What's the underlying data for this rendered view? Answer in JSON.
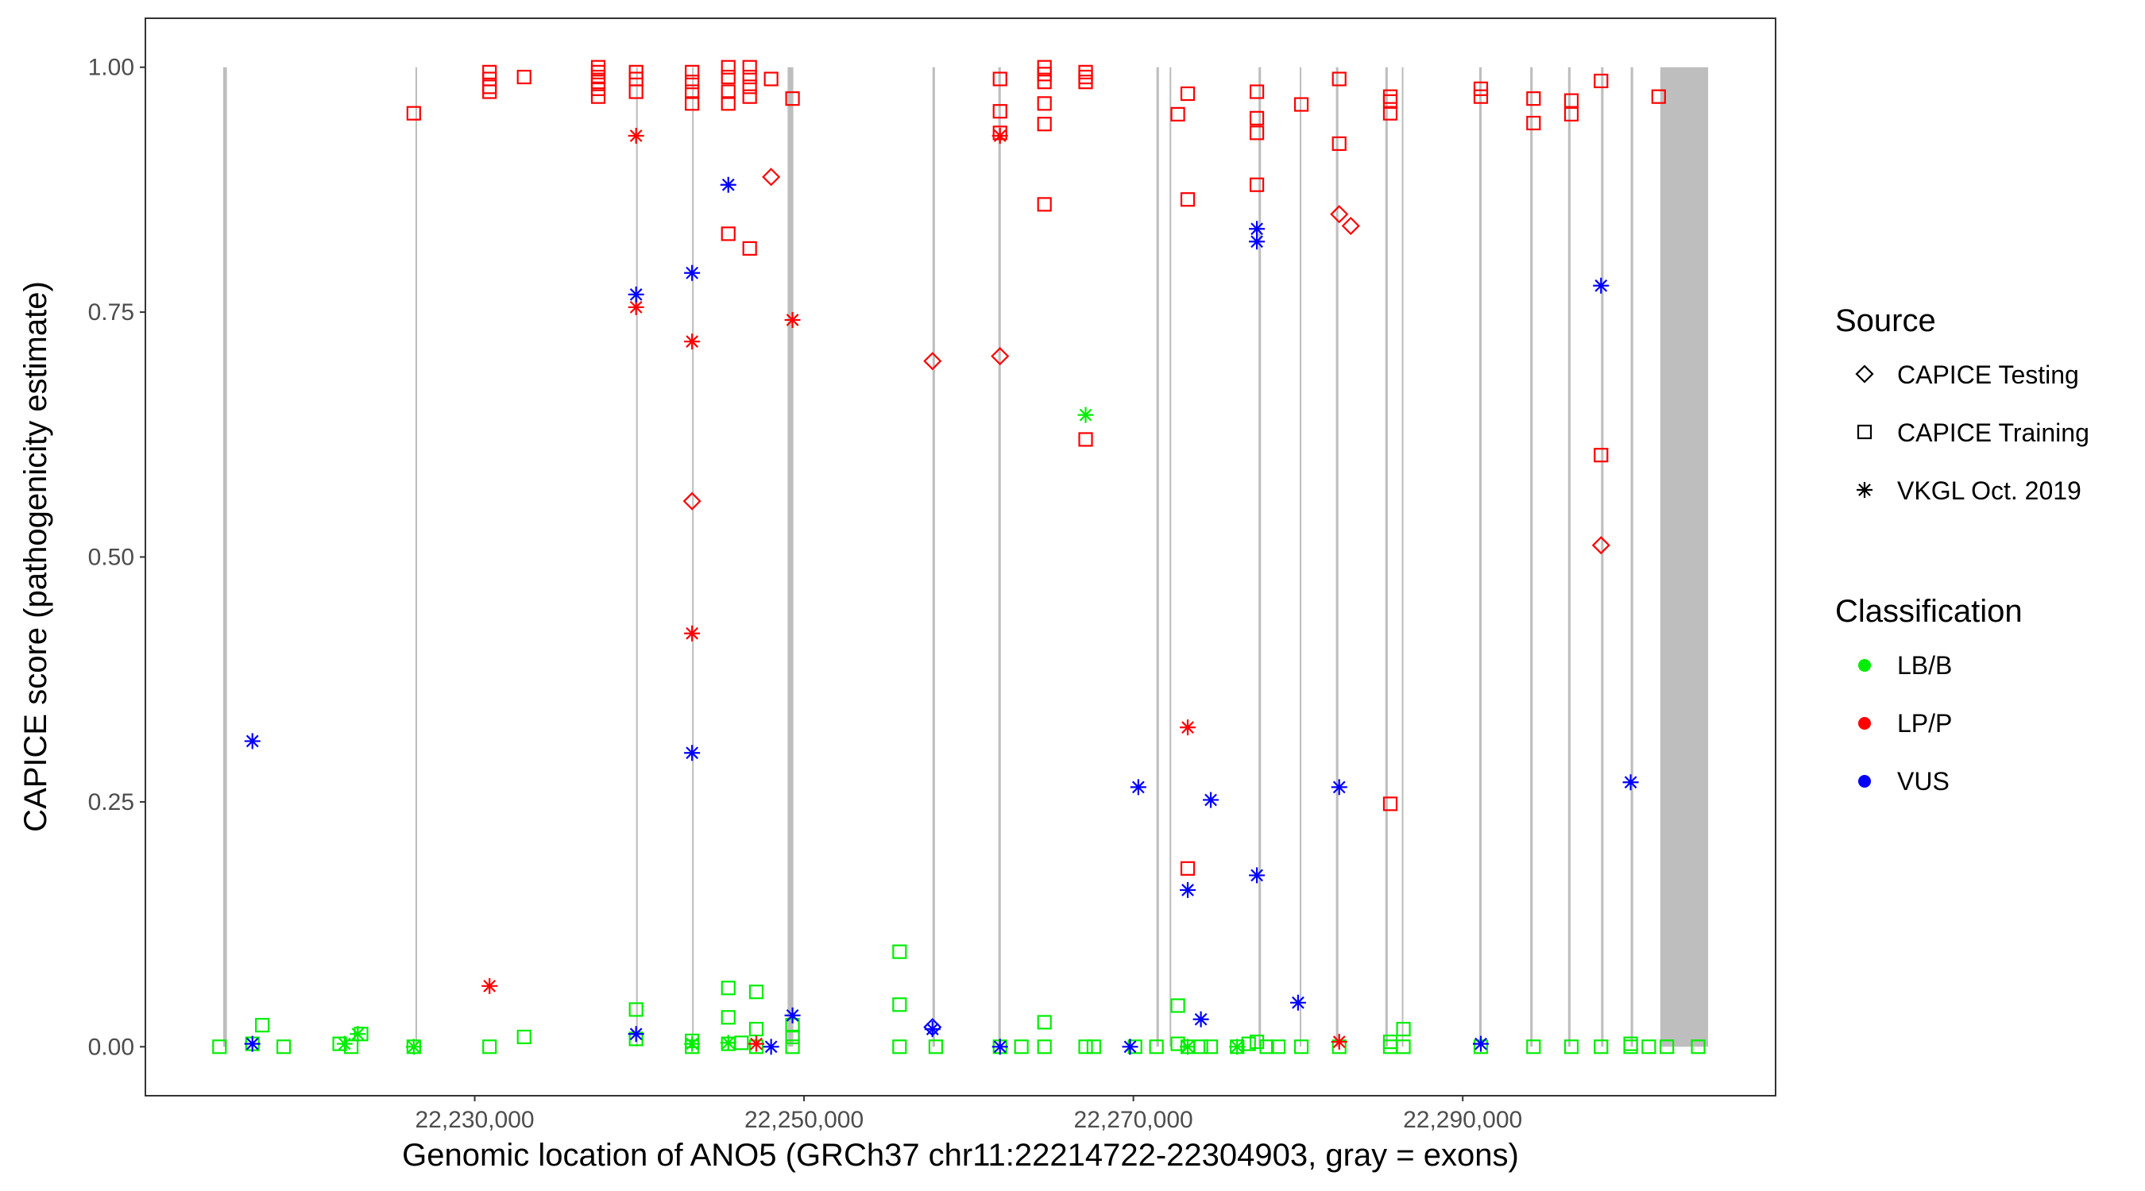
{
  "chart_data": {
    "type": "scatter",
    "xlabel": "Genomic location of ANO5 (GRCh37 chr11:22214722-22304903, gray = exons)",
    "ylabel": "CAPICE score (pathogenicity estimate)",
    "xlim": [
      22210000,
      22309000
    ],
    "ylim": [
      -0.05,
      1.05
    ],
    "x_ticks": [
      22230000,
      22250000,
      22270000,
      22290000
    ],
    "x_tick_labels": [
      "22,230,000",
      "22,250,000",
      "22,270,000",
      "22,290,000"
    ],
    "y_ticks": [
      0,
      0.25,
      0.5,
      0.75,
      1.0
    ],
    "y_tick_labels": [
      "0.00",
      "0.25",
      "0.50",
      "0.75",
      "1.00"
    ],
    "grid": false,
    "legend_position": "right",
    "exons": [
      {
        "start": 22214722,
        "end": 22214950
      },
      {
        "start": 22226400,
        "end": 22226500
      },
      {
        "start": 22239800,
        "end": 22239900
      },
      {
        "start": 22243200,
        "end": 22243300
      },
      {
        "start": 22249000,
        "end": 22249350
      },
      {
        "start": 22257800,
        "end": 22257950
      },
      {
        "start": 22261800,
        "end": 22261950
      },
      {
        "start": 22271400,
        "end": 22271550
      },
      {
        "start": 22272200,
        "end": 22272300
      },
      {
        "start": 22277600,
        "end": 22277750
      },
      {
        "start": 22280100,
        "end": 22280200
      },
      {
        "start": 22282300,
        "end": 22282450
      },
      {
        "start": 22285300,
        "end": 22285450
      },
      {
        "start": 22286300,
        "end": 22286400
      },
      {
        "start": 22291000,
        "end": 22291150
      },
      {
        "start": 22294100,
        "end": 22294250
      },
      {
        "start": 22296400,
        "end": 22296550
      },
      {
        "start": 22298400,
        "end": 22298550
      },
      {
        "start": 22300200,
        "end": 22300350
      },
      {
        "start": 22302000,
        "end": 22304903
      }
    ],
    "legend": {
      "source_title": "Source",
      "source_items": [
        {
          "label": "CAPICE Testing",
          "shape": "diamond"
        },
        {
          "label": "CAPICE Training",
          "shape": "square"
        },
        {
          "label": "VKGL Oct. 2019",
          "shape": "asterisk"
        }
      ],
      "class_title": "Classification",
      "class_items": [
        {
          "label": "LB/B",
          "color": "#00ee00"
        },
        {
          "label": "LP/P",
          "color": "#ff0000"
        },
        {
          "label": "VUS",
          "color": "#0000ff"
        }
      ]
    },
    "series": [
      {
        "source": "CAPICE Training",
        "classification": "LP/P",
        "points": [
          [
            22226300,
            0.953
          ],
          [
            22230900,
            0.995
          ],
          [
            22230900,
            0.988
          ],
          [
            22230900,
            0.98
          ],
          [
            22230900,
            0.975
          ],
          [
            22233000,
            0.99
          ],
          [
            22237500,
            1.0
          ],
          [
            22237500,
            0.995
          ],
          [
            22237500,
            0.99
          ],
          [
            22237500,
            0.985
          ],
          [
            22237500,
            0.978
          ],
          [
            22237500,
            0.97
          ],
          [
            22239800,
            0.995
          ],
          [
            22239800,
            0.988
          ],
          [
            22239800,
            0.975
          ],
          [
            22243200,
            0.995
          ],
          [
            22243200,
            0.985
          ],
          [
            22243200,
            0.975
          ],
          [
            22243200,
            0.963
          ],
          [
            22245400,
            1.0
          ],
          [
            22245400,
            0.99
          ],
          [
            22245400,
            0.975
          ],
          [
            22245400,
            0.963
          ],
          [
            22245400,
            0.83
          ],
          [
            22246700,
            1.0
          ],
          [
            22246700,
            0.99
          ],
          [
            22246700,
            0.98
          ],
          [
            22246700,
            0.97
          ],
          [
            22246700,
            0.815
          ],
          [
            22248000,
            0.988
          ],
          [
            22249300,
            0.968
          ],
          [
            22261900,
            0.988
          ],
          [
            22261900,
            0.955
          ],
          [
            22261900,
            0.933
          ],
          [
            22264600,
            1.0
          ],
          [
            22264600,
            0.993
          ],
          [
            22264600,
            0.985
          ],
          [
            22264600,
            0.963
          ],
          [
            22264600,
            0.942
          ],
          [
            22264600,
            0.86
          ],
          [
            22267100,
            0.995
          ],
          [
            22267100,
            0.99
          ],
          [
            22267100,
            0.985
          ],
          [
            22267100,
            0.62
          ],
          [
            22272700,
            0.952
          ],
          [
            22273300,
            0.973
          ],
          [
            22273300,
            0.865
          ],
          [
            22273300,
            0.182
          ],
          [
            22277500,
            0.975
          ],
          [
            22277500,
            0.948
          ],
          [
            22277500,
            0.933
          ],
          [
            22277500,
            0.88
          ],
          [
            22280200,
            0.962
          ],
          [
            22282500,
            0.988
          ],
          [
            22282500,
            0.922
          ],
          [
            22285600,
            0.97
          ],
          [
            22285600,
            0.965
          ],
          [
            22285600,
            0.953
          ],
          [
            22285600,
            0.248
          ],
          [
            22291100,
            0.978
          ],
          [
            22291100,
            0.97
          ],
          [
            22294300,
            0.968
          ],
          [
            22294300,
            0.943
          ],
          [
            22296600,
            0.966
          ],
          [
            22296600,
            0.952
          ],
          [
            22298400,
            0.986
          ],
          [
            22298400,
            0.604
          ],
          [
            22301900,
            0.97
          ]
        ]
      },
      {
        "source": "CAPICE Training",
        "classification": "LB/B",
        "points": [
          [
            22214500,
            0.0
          ],
          [
            22216500,
            0.003
          ],
          [
            22217100,
            0.022
          ],
          [
            22218400,
            0.0
          ],
          [
            22221800,
            0.003
          ],
          [
            22222500,
            0.0
          ],
          [
            22223100,
            0.013
          ],
          [
            22226300,
            0.0
          ],
          [
            22230900,
            0.0
          ],
          [
            22233000,
            0.01
          ],
          [
            22239800,
            0.038
          ],
          [
            22239800,
            0.008
          ],
          [
            22243200,
            0.006
          ],
          [
            22243200,
            0.0
          ],
          [
            22245400,
            0.06
          ],
          [
            22245400,
            0.03
          ],
          [
            22245400,
            0.003
          ],
          [
            22246200,
            0.004
          ],
          [
            22247100,
            0.056
          ],
          [
            22247100,
            0.018
          ],
          [
            22247100,
            0.0
          ],
          [
            22249300,
            0.0
          ],
          [
            22249300,
            0.01
          ],
          [
            22249300,
            0.022
          ],
          [
            22255800,
            0.097
          ],
          [
            22255800,
            0.043
          ],
          [
            22255800,
            0.0
          ],
          [
            22258000,
            0.0
          ],
          [
            22261900,
            0.0
          ],
          [
            22263200,
            0.0
          ],
          [
            22264600,
            0.025
          ],
          [
            22264600,
            0.0
          ],
          [
            22267100,
            0.0
          ],
          [
            22267600,
            0.0
          ],
          [
            22270100,
            0.0
          ],
          [
            22271400,
            0.0
          ],
          [
            22272700,
            0.042
          ],
          [
            22272700,
            0.003
          ],
          [
            22273300,
            0.0
          ],
          [
            22274100,
            0.0
          ],
          [
            22274700,
            0.0
          ],
          [
            22276300,
            0.0
          ],
          [
            22277000,
            0.003
          ],
          [
            22277500,
            0.005
          ],
          [
            22278100,
            0.0
          ],
          [
            22278800,
            0.0
          ],
          [
            22280200,
            0.0
          ],
          [
            22282500,
            0.0
          ],
          [
            22285600,
            0.005
          ],
          [
            22285600,
            0.0
          ],
          [
            22286400,
            0.018
          ],
          [
            22286400,
            0.0
          ],
          [
            22291100,
            0.0
          ],
          [
            22294300,
            0.0
          ],
          [
            22296600,
            0.0
          ],
          [
            22298400,
            0.0
          ],
          [
            22300200,
            0.003
          ],
          [
            22300200,
            0.0
          ],
          [
            22301300,
            0.0
          ],
          [
            22302400,
            0.0
          ],
          [
            22304300,
            0.0
          ]
        ]
      },
      {
        "source": "CAPICE Testing",
        "classification": "LP/P",
        "points": [
          [
            22243200,
            0.557
          ],
          [
            22248000,
            0.888
          ],
          [
            22257800,
            0.7
          ],
          [
            22261900,
            0.705
          ],
          [
            22282500,
            0.85
          ],
          [
            22283200,
            0.838
          ],
          [
            22298400,
            0.512
          ]
        ]
      },
      {
        "source": "CAPICE Testing",
        "classification": "VUS",
        "points": [
          [
            22257800,
            0.02
          ]
        ]
      },
      {
        "source": "VKGL Oct. 2019",
        "classification": "LP/P",
        "points": [
          [
            22230900,
            0.062
          ],
          [
            22239800,
            0.93
          ],
          [
            22239800,
            0.755
          ],
          [
            22243200,
            0.72
          ],
          [
            22243200,
            0.422
          ],
          [
            22247100,
            0.003
          ],
          [
            22249300,
            0.742
          ],
          [
            22261900,
            0.93
          ],
          [
            22273300,
            0.326
          ],
          [
            22282500,
            0.005
          ]
        ]
      },
      {
        "source": "VKGL Oct. 2019",
        "classification": "VUS",
        "points": [
          [
            22216500,
            0.312
          ],
          [
            22216500,
            0.003
          ],
          [
            22239800,
            0.768
          ],
          [
            22239800,
            0.013
          ],
          [
            22243200,
            0.79
          ],
          [
            22243200,
            0.3
          ],
          [
            22245400,
            0.88
          ],
          [
            22248000,
            0.0
          ],
          [
            22249300,
            0.032
          ],
          [
            22257800,
            0.018
          ],
          [
            22261900,
            0.0
          ],
          [
            22269800,
            0.0
          ],
          [
            22270300,
            0.265
          ],
          [
            22273300,
            0.16
          ],
          [
            22274100,
            0.028
          ],
          [
            22274700,
            0.252
          ],
          [
            22277500,
            0.835
          ],
          [
            22277500,
            0.822
          ],
          [
            22277500,
            0.175
          ],
          [
            22280000,
            0.045
          ],
          [
            22282500,
            0.265
          ],
          [
            22291100,
            0.003
          ],
          [
            22298400,
            0.777
          ],
          [
            22300200,
            0.27
          ]
        ]
      },
      {
        "source": "VKGL Oct. 2019",
        "classification": "LB/B",
        "points": [
          [
            22222100,
            0.003
          ],
          [
            22222900,
            0.013
          ],
          [
            22226300,
            0.0
          ],
          [
            22243200,
            0.003
          ],
          [
            22245400,
            0.004
          ],
          [
            22267100,
            0.645
          ],
          [
            22273300,
            0.0
          ],
          [
            22276300,
            0.0
          ]
        ]
      }
    ]
  }
}
